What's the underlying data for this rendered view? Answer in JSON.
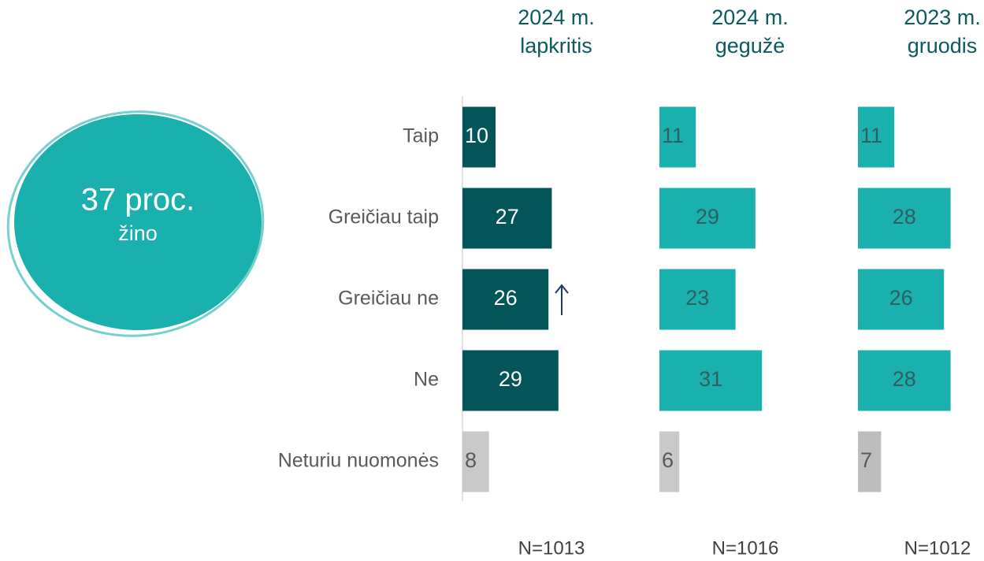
{
  "badge": {
    "title": "37 proc.",
    "subtitle": "žino"
  },
  "chart_data": {
    "type": "bar",
    "orientation": "horizontal",
    "categories": [
      "Taip",
      "Greičiau taip",
      "Greičiau ne",
      "Ne",
      "Neturiu nuomonės"
    ],
    "series": [
      {
        "name": [
          "2024 m.",
          "lapkritis"
        ],
        "note": "N=1013",
        "values": [
          10,
          27,
          26,
          29,
          8
        ],
        "colors": [
          "#04555a",
          "#04555a",
          "#04555a",
          "#04555a",
          "#c9c9c9"
        ]
      },
      {
        "name": [
          "2024 m.",
          "gegužė"
        ],
        "note": "N=1016",
        "values": [
          11,
          29,
          23,
          31,
          6
        ],
        "colors": [
          "#1ab0ad",
          "#1ab0ad",
          "#1ab0ad",
          "#1ab0ad",
          "#c9c9c9"
        ]
      },
      {
        "name": [
          "2023 m.",
          "gruodis"
        ],
        "note": "N=1012",
        "values": [
          11,
          28,
          26,
          28,
          7
        ],
        "colors": [
          "#1ab0ad",
          "#1ab0ad",
          "#1ab0ad",
          "#1ab0ad",
          "#bdbdbd"
        ]
      }
    ]
  }
}
